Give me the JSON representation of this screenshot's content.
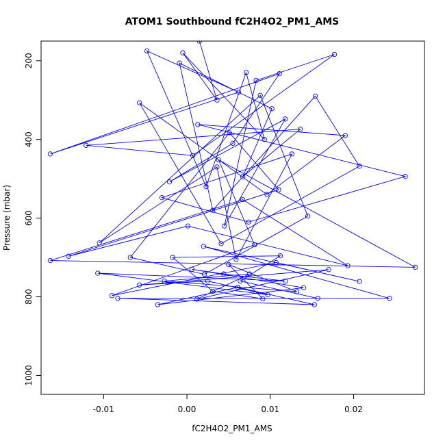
{
  "chart_data": {
    "type": "scatter",
    "mode": "lines+markers",
    "title": "ATOM1 Southbound fC2H4O2_PM1_AMS",
    "xlabel": "fC2H4O2_PM1_AMS",
    "ylabel": "Pressure (mbar)",
    "xlim": [
      -0.0175,
      0.0285
    ],
    "ylim": [
      1048,
      150
    ],
    "y_reversed": true,
    "xticks": [
      -0.01,
      0.0,
      0.01,
      0.02
    ],
    "xtick_labels": [
      "-0.01",
      "0.00",
      "0.01",
      "0.02"
    ],
    "yticks": [
      200,
      400,
      600,
      800,
      1000
    ],
    "ytick_labels": [
      "200",
      "400",
      "600",
      "800",
      "1000"
    ],
    "grid": false,
    "series": [
      {
        "color": "#0000ff",
        "marker": "open-circle",
        "points": [
          [
            0.0015,
            150
          ],
          [
            0.0036,
            300
          ],
          [
            -0.0005,
            180
          ],
          [
            0.0093,
            400
          ],
          [
            0.0071,
            230
          ],
          [
            0.0023,
            520
          ],
          [
            -0.0048,
            175
          ],
          [
            0.0062,
            280
          ],
          [
            -0.0164,
            437
          ],
          [
            0.0111,
            233
          ],
          [
            0.0055,
            410
          ],
          [
            -0.0021,
            508
          ],
          [
            0.0118,
            348
          ],
          [
            0.0045,
            620
          ],
          [
            0.0083,
            250
          ],
          [
            0.0177,
            184
          ],
          [
            0.0007,
            441
          ],
          [
            -0.0121,
            415
          ],
          [
            0.0136,
            374
          ],
          [
            0.0067,
            495
          ],
          [
            0.0102,
            322
          ],
          [
            -0.0009,
            206
          ],
          [
            0.0031,
            580
          ],
          [
            0.0154,
            290
          ],
          [
            0.0207,
            468
          ],
          [
            0.0041,
            665
          ],
          [
            -0.0057,
            307
          ],
          [
            0.0096,
            540
          ],
          [
            0.019,
            390
          ],
          [
            0.0013,
            362
          ],
          [
            0.0262,
            494
          ],
          [
            0.0074,
            610
          ],
          [
            -0.003,
            548
          ],
          [
            0.0126,
            437
          ],
          [
            0.0059,
            705
          ],
          [
            0.0036,
            470
          ],
          [
            -0.0105,
            663
          ],
          [
            0.0088,
            288
          ],
          [
            0.0145,
            595
          ],
          [
            0.0021,
            743
          ],
          [
            -0.0068,
            700
          ],
          [
            0.0051,
            383
          ],
          [
            0.011,
            528
          ],
          [
            -0.0142,
            697
          ],
          [
            0.0001,
            620
          ],
          [
            0.0193,
            721
          ],
          [
            0.0067,
            553
          ],
          [
            -0.0164,
            708
          ],
          [
            0.0274,
            725
          ],
          [
            0.0038,
            452
          ],
          [
            0.0081,
            668
          ],
          [
            -0.009,
            797
          ],
          [
            0.0107,
            713
          ],
          [
            0.0207,
            761
          ],
          [
            0.002,
            672
          ],
          [
            0.0243,
            804
          ],
          [
            -0.0083,
            804
          ],
          [
            0.0153,
            820
          ],
          [
            0.0061,
            776
          ],
          [
            -0.0035,
            820
          ],
          [
            0.014,
            777
          ],
          [
            0.0006,
            730
          ],
          [
            0.0044,
            742
          ],
          [
            0.0118,
            760
          ],
          [
            -0.0107,
            740
          ],
          [
            0.0097,
            795
          ],
          [
            0.0025,
            760
          ],
          [
            -0.0057,
            770
          ],
          [
            0.017,
            731
          ],
          [
            0.0012,
            806
          ],
          [
            0.0075,
            742
          ],
          [
            -0.0027,
            760
          ],
          [
            0.0132,
            787
          ],
          [
            0.005,
            718
          ],
          [
            0.0091,
            805
          ],
          [
            0.0031,
            786
          ],
          [
            -0.0017,
            700
          ],
          [
            0.0112,
            696
          ],
          [
            0.0064,
            760
          ],
          [
            0.0157,
            804
          ]
        ]
      }
    ]
  }
}
